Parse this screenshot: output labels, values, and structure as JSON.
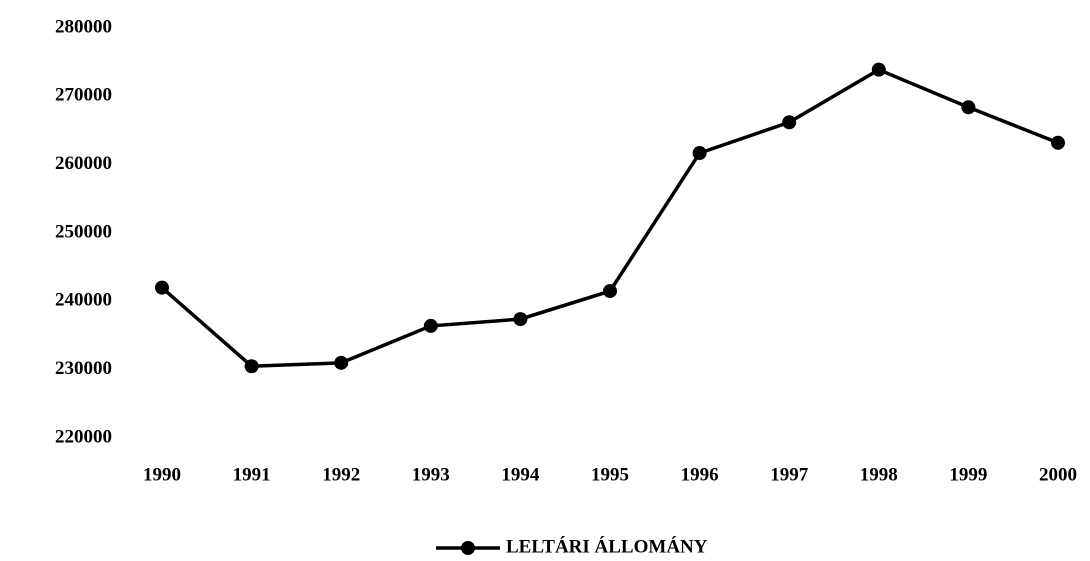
{
  "chart_data": {
    "type": "line",
    "categories": [
      "1990",
      "1991",
      "1992",
      "1993",
      "1994",
      "1995",
      "1996",
      "1997",
      "1998",
      "1999",
      "2000"
    ],
    "series": [
      {
        "name": "LELTÁRI ÁLLOMÁNY",
        "color": "#000000",
        "values": [
          242000,
          230500,
          231000,
          236400,
          237400,
          241500,
          261700,
          266200,
          273900,
          268400,
          263200
        ]
      }
    ],
    "ylim": [
      220000,
      280000
    ],
    "yticks": [
      220000,
      230000,
      240000,
      250000,
      260000,
      270000,
      280000
    ],
    "grid": false,
    "legend": "bottom"
  }
}
